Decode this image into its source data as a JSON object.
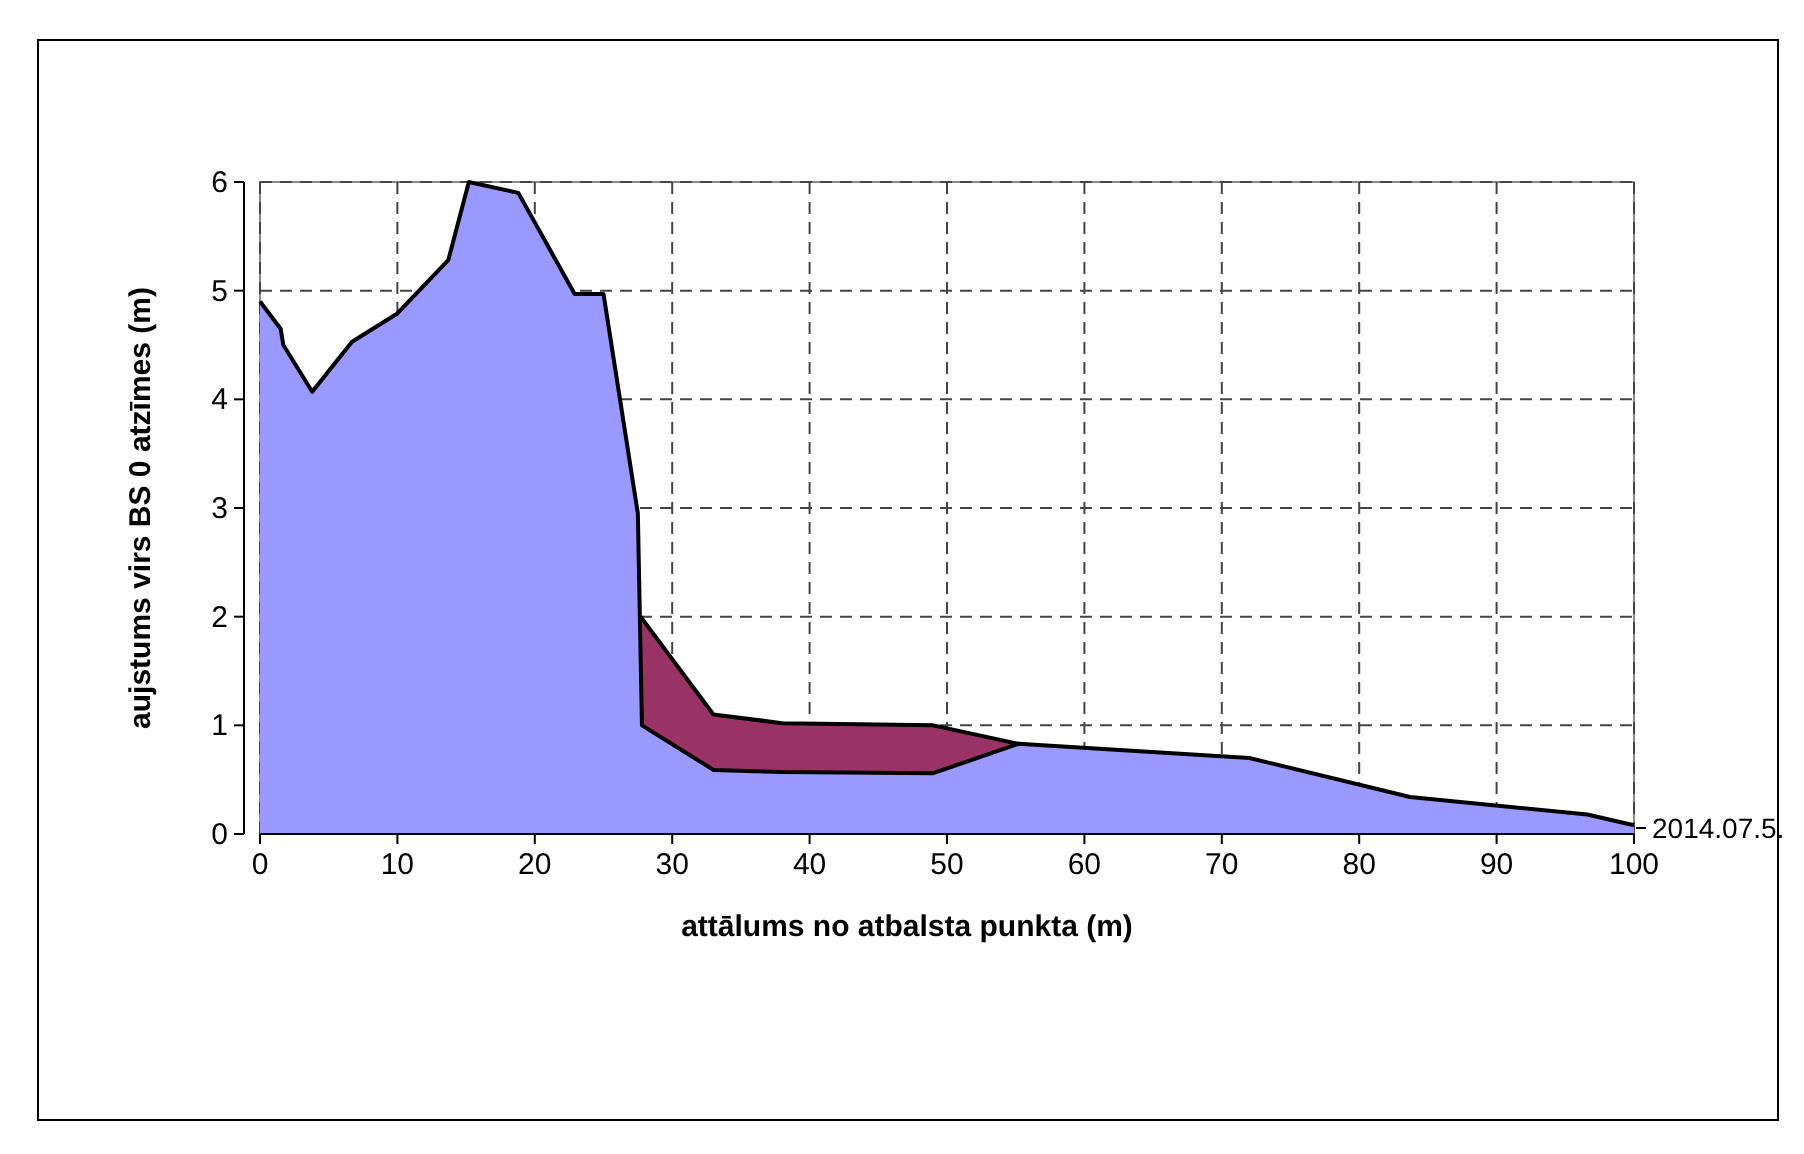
{
  "chart_data": {
    "type": "area",
    "xlabel": "attālums no atbalsta punkta (m)",
    "ylabel": "aujstums virs BS 0 atzīmes (m)",
    "xlim": [
      0,
      100
    ],
    "xticks": [
      0,
      10,
      20,
      30,
      40,
      50,
      60,
      70,
      80,
      90,
      100
    ],
    "ylim": [
      0,
      6
    ],
    "yticks": [
      0,
      1,
      2,
      3,
      4,
      5,
      6
    ],
    "grid": true,
    "line_style": "dashed",
    "legend": "right",
    "series": [
      {
        "color": "#993366",
        "x": [
          27.7,
          33,
          38,
          49,
          55.2
        ],
        "values": [
          2.0,
          1.1,
          1.02,
          1.0,
          0.83
        ]
      },
      {
        "name": "2014.07.5.",
        "color": "#9999ff",
        "x": [
          0,
          1.5,
          1.7,
          3.8,
          6.7,
          10,
          13.7,
          15.2,
          18.8,
          22.9,
          25,
          27.5,
          27.8,
          33,
          38,
          49,
          55.2,
          72,
          83.7,
          96.6,
          100
        ],
        "values": [
          4.9,
          4.65,
          4.5,
          4.07,
          4.53,
          4.79,
          5.28,
          6.0,
          5.9,
          4.97,
          4.97,
          2.95,
          1.0,
          0.59,
          0.57,
          0.56,
          0.83,
          0.7,
          0.34,
          0.18,
          0.08
        ]
      }
    ]
  }
}
